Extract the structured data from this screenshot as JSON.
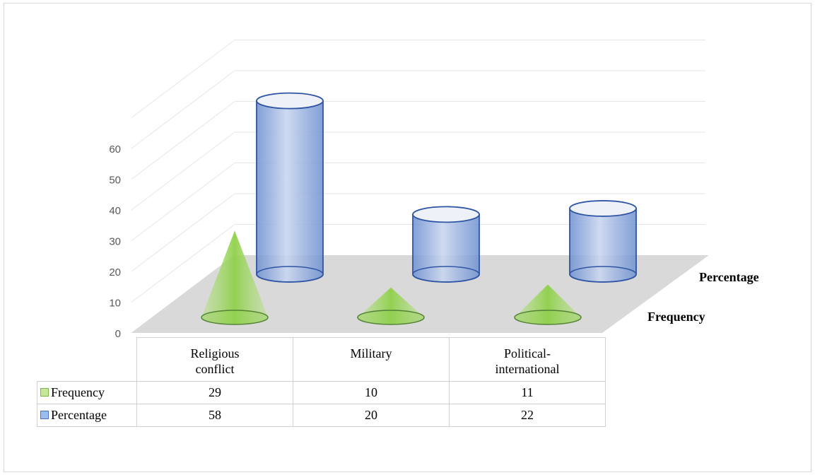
{
  "chart_data": {
    "type": "bar",
    "subtype": "3d-column-with-depth",
    "categories": [
      "Religious conflict",
      "Military",
      "Political-international"
    ],
    "category_lines": [
      [
        "Religious",
        "conflict"
      ],
      [
        "Military"
      ],
      [
        "Political-",
        "international"
      ]
    ],
    "series": [
      {
        "name": "Frequency",
        "values": [
          29,
          10,
          11
        ],
        "shape": "cone",
        "color": "#92d050"
      },
      {
        "name": "Percentage",
        "values": [
          58,
          20,
          22
        ],
        "shape": "cylinder",
        "color": "#4472c4"
      }
    ],
    "y_ticks": [
      "0",
      "10",
      "20",
      "30",
      "40",
      "50",
      "60"
    ],
    "ylim": [
      0,
      70
    ],
    "grid": true,
    "legend": "data-table-below",
    "depth_labels": [
      "Percentage",
      "Frequency"
    ]
  },
  "colors": {
    "frequency_fill": "#92d050",
    "frequency_stroke": "#548235",
    "percentage_fill": "#6d9eeb",
    "percentage_stroke": "#2f55a4",
    "floor": "#d9d9d9",
    "grid": "#e6e6e6"
  }
}
